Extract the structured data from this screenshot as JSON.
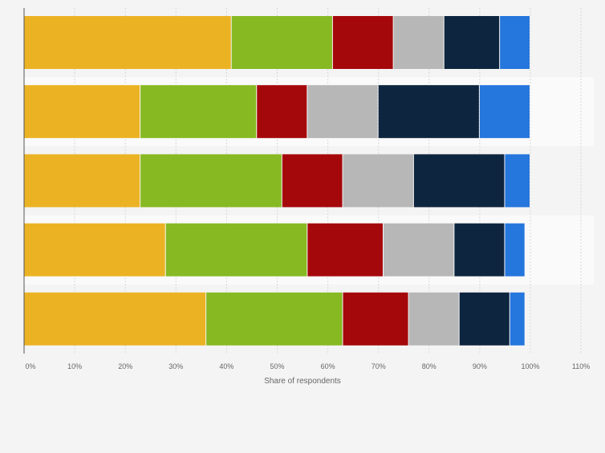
{
  "chart_data": {
    "type": "bar",
    "orientation": "horizontal",
    "stacked": true,
    "categories": [
      "",
      "",
      "",
      "",
      ""
    ],
    "series": [
      {
        "color": "#ebb323",
        "values": [
          41,
          23,
          23,
          28,
          36
        ]
      },
      {
        "color": "#87b923",
        "values": [
          20,
          23,
          28,
          28,
          27
        ]
      },
      {
        "color": "#a5080b",
        "values": [
          12,
          10,
          12,
          15,
          13
        ]
      },
      {
        "color": "#b7b7b7",
        "values": [
          10,
          14,
          14,
          14,
          10
        ]
      },
      {
        "color": "#0e253f",
        "values": [
          11,
          20,
          18,
          10,
          10
        ]
      },
      {
        "color": "#2576dd",
        "values": [
          6,
          10,
          5,
          4,
          3
        ]
      }
    ],
    "xlabel": "Share of respondents",
    "xlim": [
      0,
      110
    ],
    "xticks": [
      "0%",
      "10%",
      "20%",
      "30%",
      "40%",
      "50%",
      "60%",
      "70%",
      "80%",
      "90%",
      "100%",
      "110%"
    ],
    "grid": true,
    "legend": "none"
  }
}
